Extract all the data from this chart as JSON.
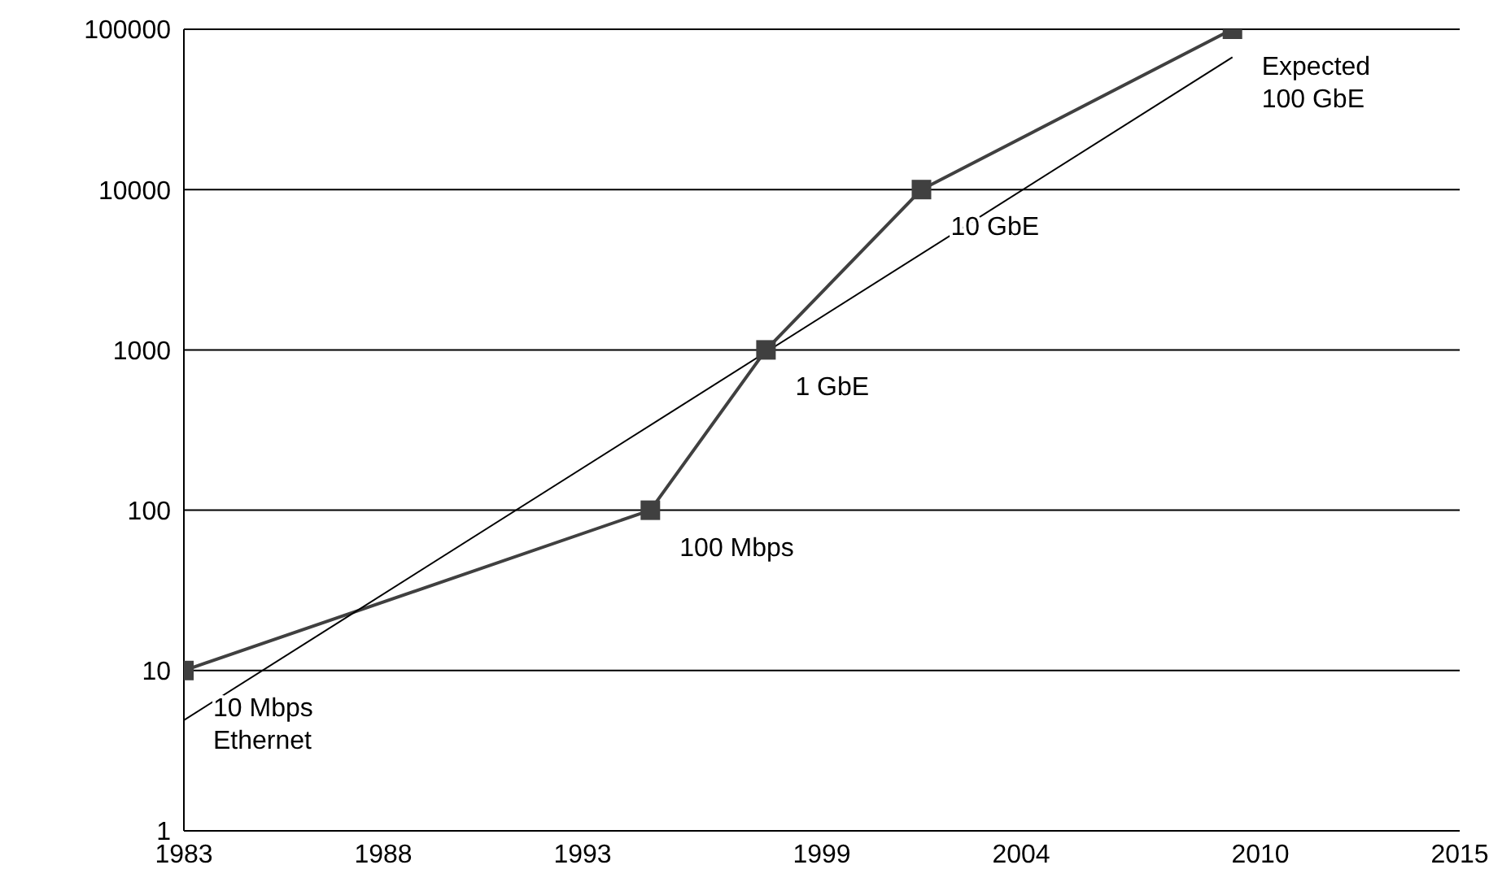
{
  "chart_data": {
    "type": "line",
    "log": "y",
    "xlim": [
      1983,
      2015
    ],
    "xticks": [
      1983,
      1988,
      1993,
      1999,
      2004,
      2010,
      2015
    ],
    "ylim": [
      1,
      100000
    ],
    "yticks": [
      1,
      10,
      100,
      1000,
      10000,
      100000
    ],
    "grid": "y",
    "series": [
      {
        "color": "#404040",
        "marker": "square",
        "x": [
          1983.0,
          1994.7,
          1997.6,
          2001.5,
          2009.3
        ],
        "values": [
          10,
          100,
          1000,
          10000,
          100000
        ]
      },
      {
        "color": "#000000",
        "marker": "none",
        "x": [
          1983.0,
          2009.3
        ],
        "values": [
          4.9,
          67000
        ]
      }
    ],
    "annotations": [
      {
        "text": "10 Mbps\nEthernet",
        "x": 1983.0,
        "y": 10
      },
      {
        "text": "100 Mbps",
        "x": 1994.7,
        "y": 100
      },
      {
        "text": "1 GbE",
        "x": 1997.6,
        "y": 1000
      },
      {
        "text": "10 GbE",
        "x": 2001.5,
        "y": 10000
      },
      {
        "text": "Expected\n100 GbE",
        "x": 2009.3,
        "y": 100000
      }
    ]
  }
}
